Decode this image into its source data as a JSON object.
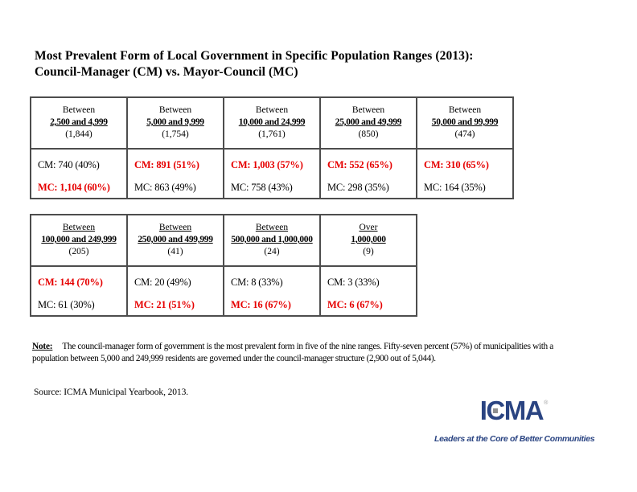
{
  "colors": {
    "highlight_red": "#e60000",
    "logo_navy": "#2a4482",
    "table_border_gray": "#4d4d4d",
    "logo_square_gray": "#8f8f8f"
  },
  "title": {
    "line1": "Most Prevalent Form of Local Government in Specific Population Ranges (2013):",
    "line2": "Council-Manager (CM) vs. Mayor-Council (MC)"
  },
  "tables": [
    {
      "name": "population-ranges-2500-to-99999",
      "prefix_underlined": false,
      "columns": [
        {
          "prefix": "Between",
          "range": "2,500 and 4,999",
          "count": "(1,844)",
          "cm_text": "CM: 740 (40%)",
          "cm_highlight": false,
          "mc_text": "MC: 1,104 (60%)",
          "mc_highlight": true
        },
        {
          "prefix": "Between",
          "range": "5,000 and 9,999",
          "count": "(1,754)",
          "cm_text": "CM: 891 (51%)",
          "cm_highlight": true,
          "mc_text": "MC: 863 (49%)",
          "mc_highlight": false
        },
        {
          "prefix": "Between",
          "range": "10,000 and 24,999",
          "count": "(1,761)",
          "cm_text": "CM: 1,003 (57%)",
          "cm_highlight": true,
          "mc_text": "MC: 758 (43%)",
          "mc_highlight": false
        },
        {
          "prefix": "Between",
          "range": "25,000 and 49,999",
          "count": "(850)",
          "cm_text": "CM: 552 (65%)",
          "cm_highlight": true,
          "mc_text": "MC: 298 (35%)",
          "mc_highlight": false
        },
        {
          "prefix": "Between",
          "range": "50,000 and 99,999",
          "count": "(474)",
          "cm_text": "CM: 310 (65%)",
          "cm_highlight": true,
          "mc_text": "MC: 164 (35%)",
          "mc_highlight": false
        }
      ]
    },
    {
      "name": "population-ranges-100000-plus",
      "prefix_underlined": true,
      "columns": [
        {
          "prefix": "Between",
          "range": "100,000 and 249,999",
          "count": "(205)",
          "cm_text": "CM: 144 (70%)",
          "cm_highlight": true,
          "mc_text": "MC: 61 (30%)",
          "mc_highlight": false
        },
        {
          "prefix": "Between",
          "range": "250,000 and 499,999",
          "count": "(41)",
          "cm_text": "CM: 20 (49%)",
          "cm_highlight": false,
          "mc_text": "MC: 21 (51%)",
          "mc_highlight": true
        },
        {
          "prefix": "Between",
          "range": "500,000 and 1,000,000",
          "count": "(24)",
          "cm_text": "CM: 8 (33%)",
          "cm_highlight": false,
          "mc_text": "MC: 16 (67%)",
          "mc_highlight": true
        },
        {
          "prefix": "Over",
          "range": "1,000,000",
          "count": "(9)",
          "cm_text": "CM: 3 (33%)",
          "cm_highlight": false,
          "mc_text": "MC: 6 (67%)",
          "mc_highlight": true
        }
      ]
    }
  ],
  "note": {
    "label": "Note:",
    "line1": "The council-manager form of government is the most prevalent form in five of the nine ranges.  Fifty-seven percent (57%) of municipalities with a",
    "line2": "population between 5,000 and 249,999 residents are governed under the council-manager structure (2,900 out of 5,044)."
  },
  "source": "Source: ICMA Municipal Yearbook, 2013.",
  "logo": {
    "part1": "I",
    "part2": "C",
    "part3": "MA",
    "registered": "®",
    "tagline": "Leaders at the Core of Better Communities"
  }
}
